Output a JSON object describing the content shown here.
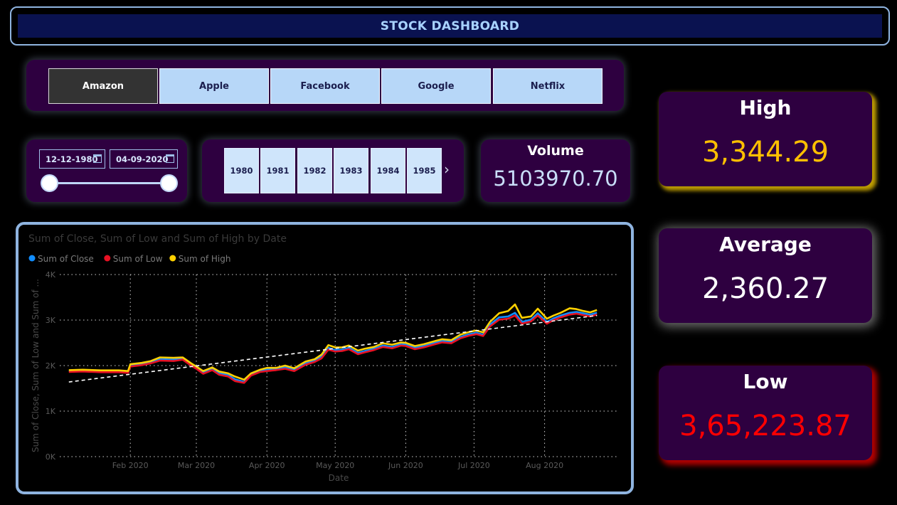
{
  "header": {
    "title": "STOCK DASHBOARD"
  },
  "company_slicer": {
    "items": [
      {
        "label": "Amazon",
        "selected": true
      },
      {
        "label": "Apple",
        "selected": false
      },
      {
        "label": "Facebook",
        "selected": false
      },
      {
        "label": "Google",
        "selected": false
      },
      {
        "label": "Netflix",
        "selected": false
      }
    ]
  },
  "date_slicer": {
    "start": "12-12-1980",
    "end": "04-09-2020"
  },
  "year_slicer": {
    "years": [
      "1980",
      "1981",
      "1982",
      "1983",
      "1984",
      "1985"
    ],
    "next_icon": "chevron-right-icon"
  },
  "volume": {
    "label": "Volume",
    "value": "5103970.70"
  },
  "kpis": {
    "high": {
      "label": "High",
      "value": "3,344.29",
      "color": "#ffc000"
    },
    "average": {
      "label": "Average",
      "value": "2,360.27",
      "color": "#ffffff"
    },
    "low": {
      "label": "Low",
      "value": "3,65,223.87",
      "color": "#ff0000"
    }
  },
  "chart_data": {
    "type": "line",
    "title": "Sum of Close, Sum of Low and Sum of High by Date",
    "xlabel": "Date",
    "ylabel": "Sum of Close, Sum of Low and Sum of ...",
    "y_ticks": [
      "0K",
      "1K",
      "2K",
      "3K",
      "4K"
    ],
    "x_ticks": [
      {
        "label": "Feb 2020",
        "day": 31
      },
      {
        "label": "Mar 2020",
        "day": 60
      },
      {
        "label": "Apr 2020",
        "day": 91
      },
      {
        "label": "May 2020",
        "day": 121
      },
      {
        "label": "Jun 2020",
        "day": 152
      },
      {
        "label": "Jul 2020",
        "day": 182
      },
      {
        "label": "Aug 2020",
        "day": 213
      }
    ],
    "ylim": [
      0,
      4000
    ],
    "xlim": [
      0,
      245
    ],
    "grid": true,
    "legend_position": "top-left",
    "trendline": {
      "style": "dashed",
      "color": "#ffffff",
      "start": [
        4,
        1640
      ],
      "end": [
        236,
        3100
      ]
    },
    "series": [
      {
        "name": "Sum of Close",
        "color": "#118dff",
        "points": [
          [
            4,
            1880
          ],
          [
            10,
            1890
          ],
          [
            18,
            1875
          ],
          [
            26,
            1875
          ],
          [
            30,
            1860
          ],
          [
            31,
            2000
          ],
          [
            36,
            2030
          ],
          [
            40,
            2070
          ],
          [
            44,
            2140
          ],
          [
            50,
            2130
          ],
          [
            54,
            2150
          ],
          [
            58,
            2010
          ],
          [
            60,
            1950
          ],
          [
            63,
            1850
          ],
          [
            67,
            1930
          ],
          [
            70,
            1830
          ],
          [
            74,
            1790
          ],
          [
            77,
            1700
          ],
          [
            81,
            1640
          ],
          [
            84,
            1800
          ],
          [
            88,
            1880
          ],
          [
            91,
            1910
          ],
          [
            95,
            1920
          ],
          [
            99,
            1960
          ],
          [
            103,
            1900
          ],
          [
            108,
            2050
          ],
          [
            112,
            2100
          ],
          [
            115,
            2190
          ],
          [
            118,
            2390
          ],
          [
            121,
            2340
          ],
          [
            124,
            2350
          ],
          [
            127,
            2390
          ],
          [
            131,
            2280
          ],
          [
            134,
            2320
          ],
          [
            138,
            2370
          ],
          [
            142,
            2440
          ],
          [
            146,
            2410
          ],
          [
            150,
            2470
          ],
          [
            152,
            2460
          ],
          [
            156,
            2390
          ],
          [
            160,
            2430
          ],
          [
            165,
            2500
          ],
          [
            168,
            2540
          ],
          [
            172,
            2520
          ],
          [
            176,
            2630
          ],
          [
            180,
            2690
          ],
          [
            183,
            2720
          ],
          [
            186,
            2680
          ],
          [
            189,
            2900
          ],
          [
            193,
            3060
          ],
          [
            197,
            3080
          ],
          [
            200,
            3160
          ],
          [
            203,
            2960
          ],
          [
            207,
            3010
          ],
          [
            210,
            3150
          ],
          [
            214,
            2960
          ],
          [
            217,
            3040
          ],
          [
            220,
            3100
          ],
          [
            224,
            3160
          ],
          [
            227,
            3180
          ],
          [
            230,
            3150
          ],
          [
            233,
            3120
          ],
          [
            236,
            3160
          ]
        ]
      },
      {
        "name": "Sum of Low",
        "color": "#e81123",
        "points": [
          [
            4,
            1860
          ],
          [
            10,
            1870
          ],
          [
            18,
            1855
          ],
          [
            26,
            1855
          ],
          [
            30,
            1840
          ],
          [
            31,
            1980
          ],
          [
            36,
            2010
          ],
          [
            40,
            2050
          ],
          [
            44,
            2110
          ],
          [
            50,
            2100
          ],
          [
            54,
            2130
          ],
          [
            58,
            1990
          ],
          [
            60,
            1930
          ],
          [
            63,
            1820
          ],
          [
            67,
            1900
          ],
          [
            70,
            1800
          ],
          [
            74,
            1760
          ],
          [
            77,
            1660
          ],
          [
            81,
            1620
          ],
          [
            84,
            1780
          ],
          [
            88,
            1860
          ],
          [
            91,
            1880
          ],
          [
            95,
            1900
          ],
          [
            99,
            1930
          ],
          [
            103,
            1880
          ],
          [
            108,
            2020
          ],
          [
            112,
            2080
          ],
          [
            115,
            2160
          ],
          [
            118,
            2350
          ],
          [
            121,
            2310
          ],
          [
            124,
            2320
          ],
          [
            127,
            2360
          ],
          [
            131,
            2250
          ],
          [
            134,
            2290
          ],
          [
            138,
            2340
          ],
          [
            142,
            2410
          ],
          [
            146,
            2380
          ],
          [
            150,
            2440
          ],
          [
            152,
            2430
          ],
          [
            156,
            2360
          ],
          [
            160,
            2400
          ],
          [
            165,
            2470
          ],
          [
            168,
            2510
          ],
          [
            172,
            2490
          ],
          [
            176,
            2600
          ],
          [
            180,
            2660
          ],
          [
            183,
            2690
          ],
          [
            186,
            2650
          ],
          [
            189,
            2860
          ],
          [
            193,
            3010
          ],
          [
            197,
            3030
          ],
          [
            200,
            3100
          ],
          [
            203,
            2920
          ],
          [
            207,
            2970
          ],
          [
            210,
            3100
          ],
          [
            214,
            2920
          ],
          [
            217,
            3000
          ],
          [
            220,
            3060
          ],
          [
            224,
            3120
          ],
          [
            227,
            3140
          ],
          [
            230,
            3110
          ],
          [
            233,
            3080
          ],
          [
            236,
            3120
          ]
        ]
      },
      {
        "name": "Sum of High",
        "color": "#ffd100",
        "points": [
          [
            4,
            1900
          ],
          [
            10,
            1910
          ],
          [
            18,
            1895
          ],
          [
            26,
            1895
          ],
          [
            30,
            1880
          ],
          [
            31,
            2030
          ],
          [
            36,
            2060
          ],
          [
            40,
            2100
          ],
          [
            44,
            2180
          ],
          [
            50,
            2170
          ],
          [
            54,
            2180
          ],
          [
            58,
            2040
          ],
          [
            60,
            1980
          ],
          [
            63,
            1880
          ],
          [
            67,
            1960
          ],
          [
            70,
            1870
          ],
          [
            74,
            1830
          ],
          [
            77,
            1760
          ],
          [
            81,
            1690
          ],
          [
            84,
            1830
          ],
          [
            88,
            1910
          ],
          [
            91,
            1950
          ],
          [
            95,
            1950
          ],
          [
            99,
            2000
          ],
          [
            103,
            1940
          ],
          [
            108,
            2090
          ],
          [
            112,
            2140
          ],
          [
            115,
            2240
          ],
          [
            118,
            2450
          ],
          [
            121,
            2400
          ],
          [
            124,
            2400
          ],
          [
            127,
            2440
          ],
          [
            131,
            2330
          ],
          [
            134,
            2370
          ],
          [
            138,
            2410
          ],
          [
            142,
            2490
          ],
          [
            146,
            2460
          ],
          [
            150,
            2510
          ],
          [
            152,
            2500
          ],
          [
            156,
            2430
          ],
          [
            160,
            2470
          ],
          [
            165,
            2540
          ],
          [
            168,
            2580
          ],
          [
            172,
            2560
          ],
          [
            176,
            2680
          ],
          [
            180,
            2740
          ],
          [
            183,
            2770
          ],
          [
            186,
            2730
          ],
          [
            189,
            2960
          ],
          [
            193,
            3150
          ],
          [
            197,
            3200
          ],
          [
            200,
            3344
          ],
          [
            203,
            3050
          ],
          [
            207,
            3080
          ],
          [
            210,
            3250
          ],
          [
            214,
            3030
          ],
          [
            217,
            3100
          ],
          [
            220,
            3160
          ],
          [
            224,
            3260
          ],
          [
            227,
            3240
          ],
          [
            230,
            3200
          ],
          [
            233,
            3170
          ],
          [
            236,
            3220
          ]
        ]
      }
    ]
  }
}
